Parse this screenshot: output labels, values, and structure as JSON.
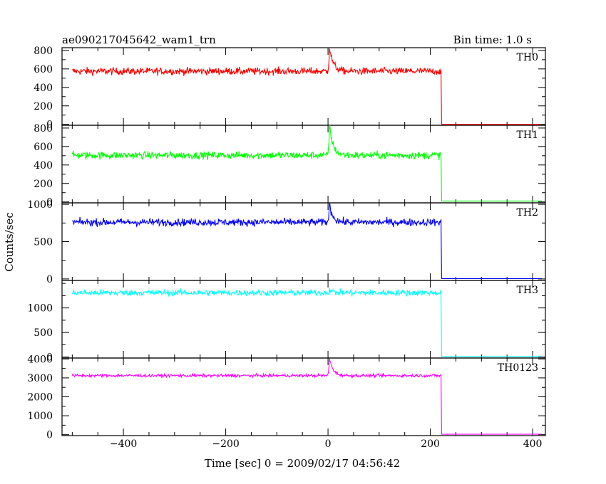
{
  "header": {
    "left": "ae090217045642_wam1_trn",
    "right": "Bin time: 1.0 s"
  },
  "chart_data": {
    "type": "line",
    "title": "ae090217045642_wam1_trn",
    "subtitle": "Bin time: 1.0 s",
    "xlabel": "Time [sec] 0 = 2009/02/17 04:56:42",
    "ylabel": "Counts/sec",
    "xlim": [
      -520,
      425
    ],
    "x_ticks": [
      -400,
      -200,
      0,
      200,
      400
    ],
    "x_tick_labels": [
      "−400",
      "−200",
      "0",
      "200",
      "400"
    ],
    "panels": [
      {
        "name": "TH0",
        "color": "#ff0000",
        "ylim": [
          -10,
          830
        ],
        "y_ticks": [
          0,
          200,
          400,
          600,
          800
        ],
        "y_tick_labels": [
          "0",
          "200",
          "400",
          "600",
          "800"
        ],
        "baseline": 575,
        "noise": 28,
        "peak": 260,
        "decay_to": 225,
        "after": 0
      },
      {
        "name": "TH1",
        "color": "#00ff00",
        "ylim": [
          -10,
          830
        ],
        "y_ticks": [
          0,
          200,
          400,
          600,
          800
        ],
        "y_tick_labels": [
          "0",
          "200",
          "400",
          "600",
          "800"
        ],
        "baseline": 505,
        "noise": 28,
        "peak": 320,
        "decay_to": 225,
        "after": 10
      },
      {
        "name": "TH2",
        "color": "#0000ff",
        "ylim": [
          -20,
          1020
        ],
        "y_ticks": [
          0,
          500,
          1000
        ],
        "y_tick_labels": [
          "0",
          "500",
          "1000"
        ],
        "baseline": 760,
        "noise": 35,
        "peak": 230,
        "decay_to": 225,
        "after": 5
      },
      {
        "name": "TH3",
        "color": "#00ffff",
        "ylim": [
          -20,
          1560
        ],
        "y_ticks": [
          0,
          500,
          1000
        ],
        "y_tick_labels": [
          "0",
          "500",
          "1000"
        ],
        "baseline": 1310,
        "noise": 45,
        "peak": 60,
        "decay_to": 225,
        "after": 10
      },
      {
        "name": "TH0123",
        "color": "#ff00ff",
        "ylim": [
          -50,
          4050
        ],
        "y_ticks": [
          0,
          1000,
          2000,
          3000,
          4000
        ],
        "y_tick_labels": [
          "0",
          "1000",
          "2000",
          "3000",
          "4000"
        ],
        "baseline": 3120,
        "noise": 55,
        "peak": 900,
        "decay_to": 225,
        "after": 20
      }
    ],
    "grid": false,
    "legend": "none"
  }
}
